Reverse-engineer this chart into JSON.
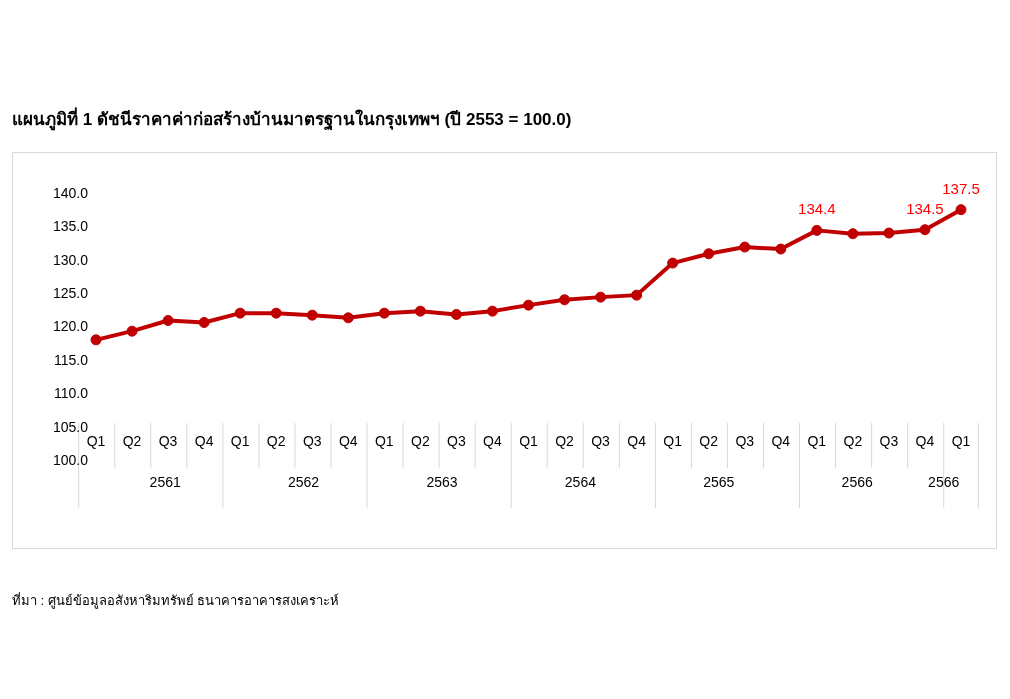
{
  "chart_data": {
    "type": "line",
    "title": "แผนภูมิที่ 1 ดัชนีราคาค่าก่อสร้างบ้านมาตรฐานในกรุงเทพฯ (ปี 2553 = 100.0)",
    "categories": [
      "Q1",
      "Q2",
      "Q3",
      "Q4",
      "Q1",
      "Q2",
      "Q3",
      "Q4",
      "Q1",
      "Q2",
      "Q3",
      "Q4",
      "Q1",
      "Q2",
      "Q3",
      "Q4",
      "Q1",
      "Q2",
      "Q3",
      "Q4",
      "Q1",
      "Q2",
      "Q3",
      "Q4",
      "Q1"
    ],
    "series": [
      {
        "color": "#c00000",
        "values": [
          118.0,
          119.3,
          120.9,
          120.6,
          122.0,
          122.0,
          121.7,
          121.3,
          122.0,
          122.3,
          121.8,
          122.3,
          123.2,
          124.0,
          124.4,
          124.7,
          129.5,
          130.9,
          131.9,
          131.6,
          134.4,
          133.9,
          134.0,
          134.5,
          137.5
        ],
        "value_labels": [
          null,
          null,
          null,
          null,
          null,
          null,
          null,
          null,
          null,
          null,
          null,
          null,
          null,
          null,
          null,
          null,
          null,
          null,
          null,
          null,
          "134.4",
          null,
          null,
          "134.5",
          "137.5"
        ]
      }
    ],
    "ylim": [
      100,
      140
    ],
    "yticks": [
      {
        "value": 100,
        "label": "100.0"
      },
      {
        "value": 105,
        "label": "105.0"
      },
      {
        "value": 110,
        "label": "110.0"
      },
      {
        "value": 115,
        "label": "115.0"
      },
      {
        "value": 120,
        "label": "120.0"
      },
      {
        "value": 125,
        "label": "125.0"
      },
      {
        "value": 130,
        "label": "130.0"
      },
      {
        "value": 135,
        "label": "135.0"
      },
      {
        "value": 140,
        "label": "140.0"
      }
    ],
    "grid": false,
    "legend": false,
    "marker": "circle",
    "line_style": "solid",
    "annotations": [
      "2561",
      "2562",
      "2563",
      "2564",
      "2565",
      "2566",
      "2566",
      "ที่มา : ศูนย์ข้อมูลอสังหาริมทรัพย์ ธนาคารอาคารสงเคราะห์"
    ]
  }
}
